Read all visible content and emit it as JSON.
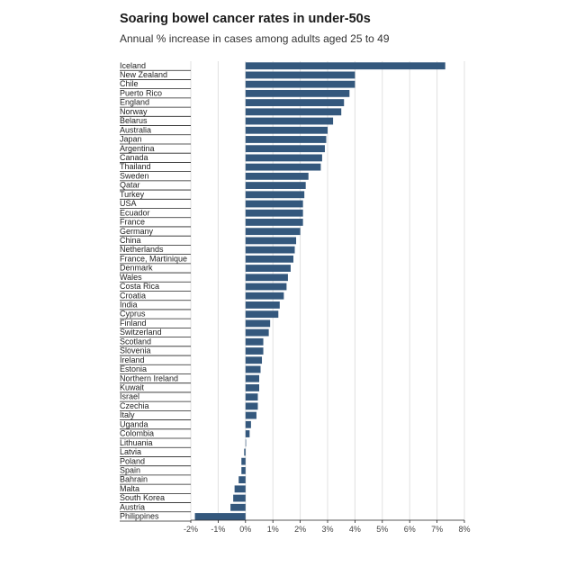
{
  "title": "Soaring bowel cancer rates in under-50s",
  "subtitle": "Annual % increase in cases among adults aged 25 to 49",
  "colors": {
    "bar": "#34587d",
    "grid": "#e0e0e0",
    "separator": "#222222",
    "text": "#222222"
  },
  "chart_data": {
    "type": "bar",
    "orientation": "horizontal",
    "title": "Soaring bowel cancer rates in under-50s",
    "subtitle": "Annual % increase in cases among adults aged 25 to 49",
    "xlim": [
      -2,
      8
    ],
    "xticks": [
      -2,
      -1,
      0,
      1,
      2,
      3,
      4,
      5,
      6,
      7,
      8
    ],
    "xtick_labels": [
      "-2%",
      "-1%",
      "0%",
      "1%",
      "2%",
      "3%",
      "4%",
      "5%",
      "6%",
      "7%",
      "8%"
    ],
    "grid": true,
    "categories": [
      "Iceland",
      "New Zealand",
      "Chile",
      "Puerto Rico",
      "England",
      "Norway",
      "Belarus",
      "Australia",
      "Japan",
      "Argentina",
      "Canada",
      "Thailand",
      "Sweden",
      "Qatar",
      "Turkey",
      "USA",
      "Ecuador",
      "France",
      "Germany",
      "China",
      "Netherlands",
      "France, Martinique",
      "Denmark",
      "Wales",
      "Costa Rica",
      "Croatia",
      "India",
      "Cyprus",
      "Finland",
      "Switzerland",
      "Scotland",
      "Slovenia",
      "Ireland",
      "Estonia",
      "Northern Ireland",
      "Kuwait",
      "Israel",
      "Czechia",
      "Italy",
      "Uganda",
      "Colombia",
      "Lithuania",
      "Latvia",
      "Poland",
      "Spain",
      "Bahrain",
      "Malta",
      "South Korea",
      "Austria",
      "Philippines"
    ],
    "values": [
      7.3,
      4.0,
      4.0,
      3.8,
      3.6,
      3.5,
      3.2,
      3.0,
      2.95,
      2.9,
      2.8,
      2.75,
      2.3,
      2.2,
      2.15,
      2.1,
      2.1,
      2.1,
      2.0,
      1.85,
      1.8,
      1.75,
      1.65,
      1.55,
      1.5,
      1.4,
      1.25,
      1.2,
      0.9,
      0.85,
      0.65,
      0.65,
      0.6,
      0.55,
      0.5,
      0.5,
      0.45,
      0.45,
      0.4,
      0.2,
      0.15,
      0.0,
      -0.05,
      -0.15,
      -0.15,
      -0.25,
      -0.4,
      -0.45,
      -0.55,
      -1.85
    ]
  }
}
